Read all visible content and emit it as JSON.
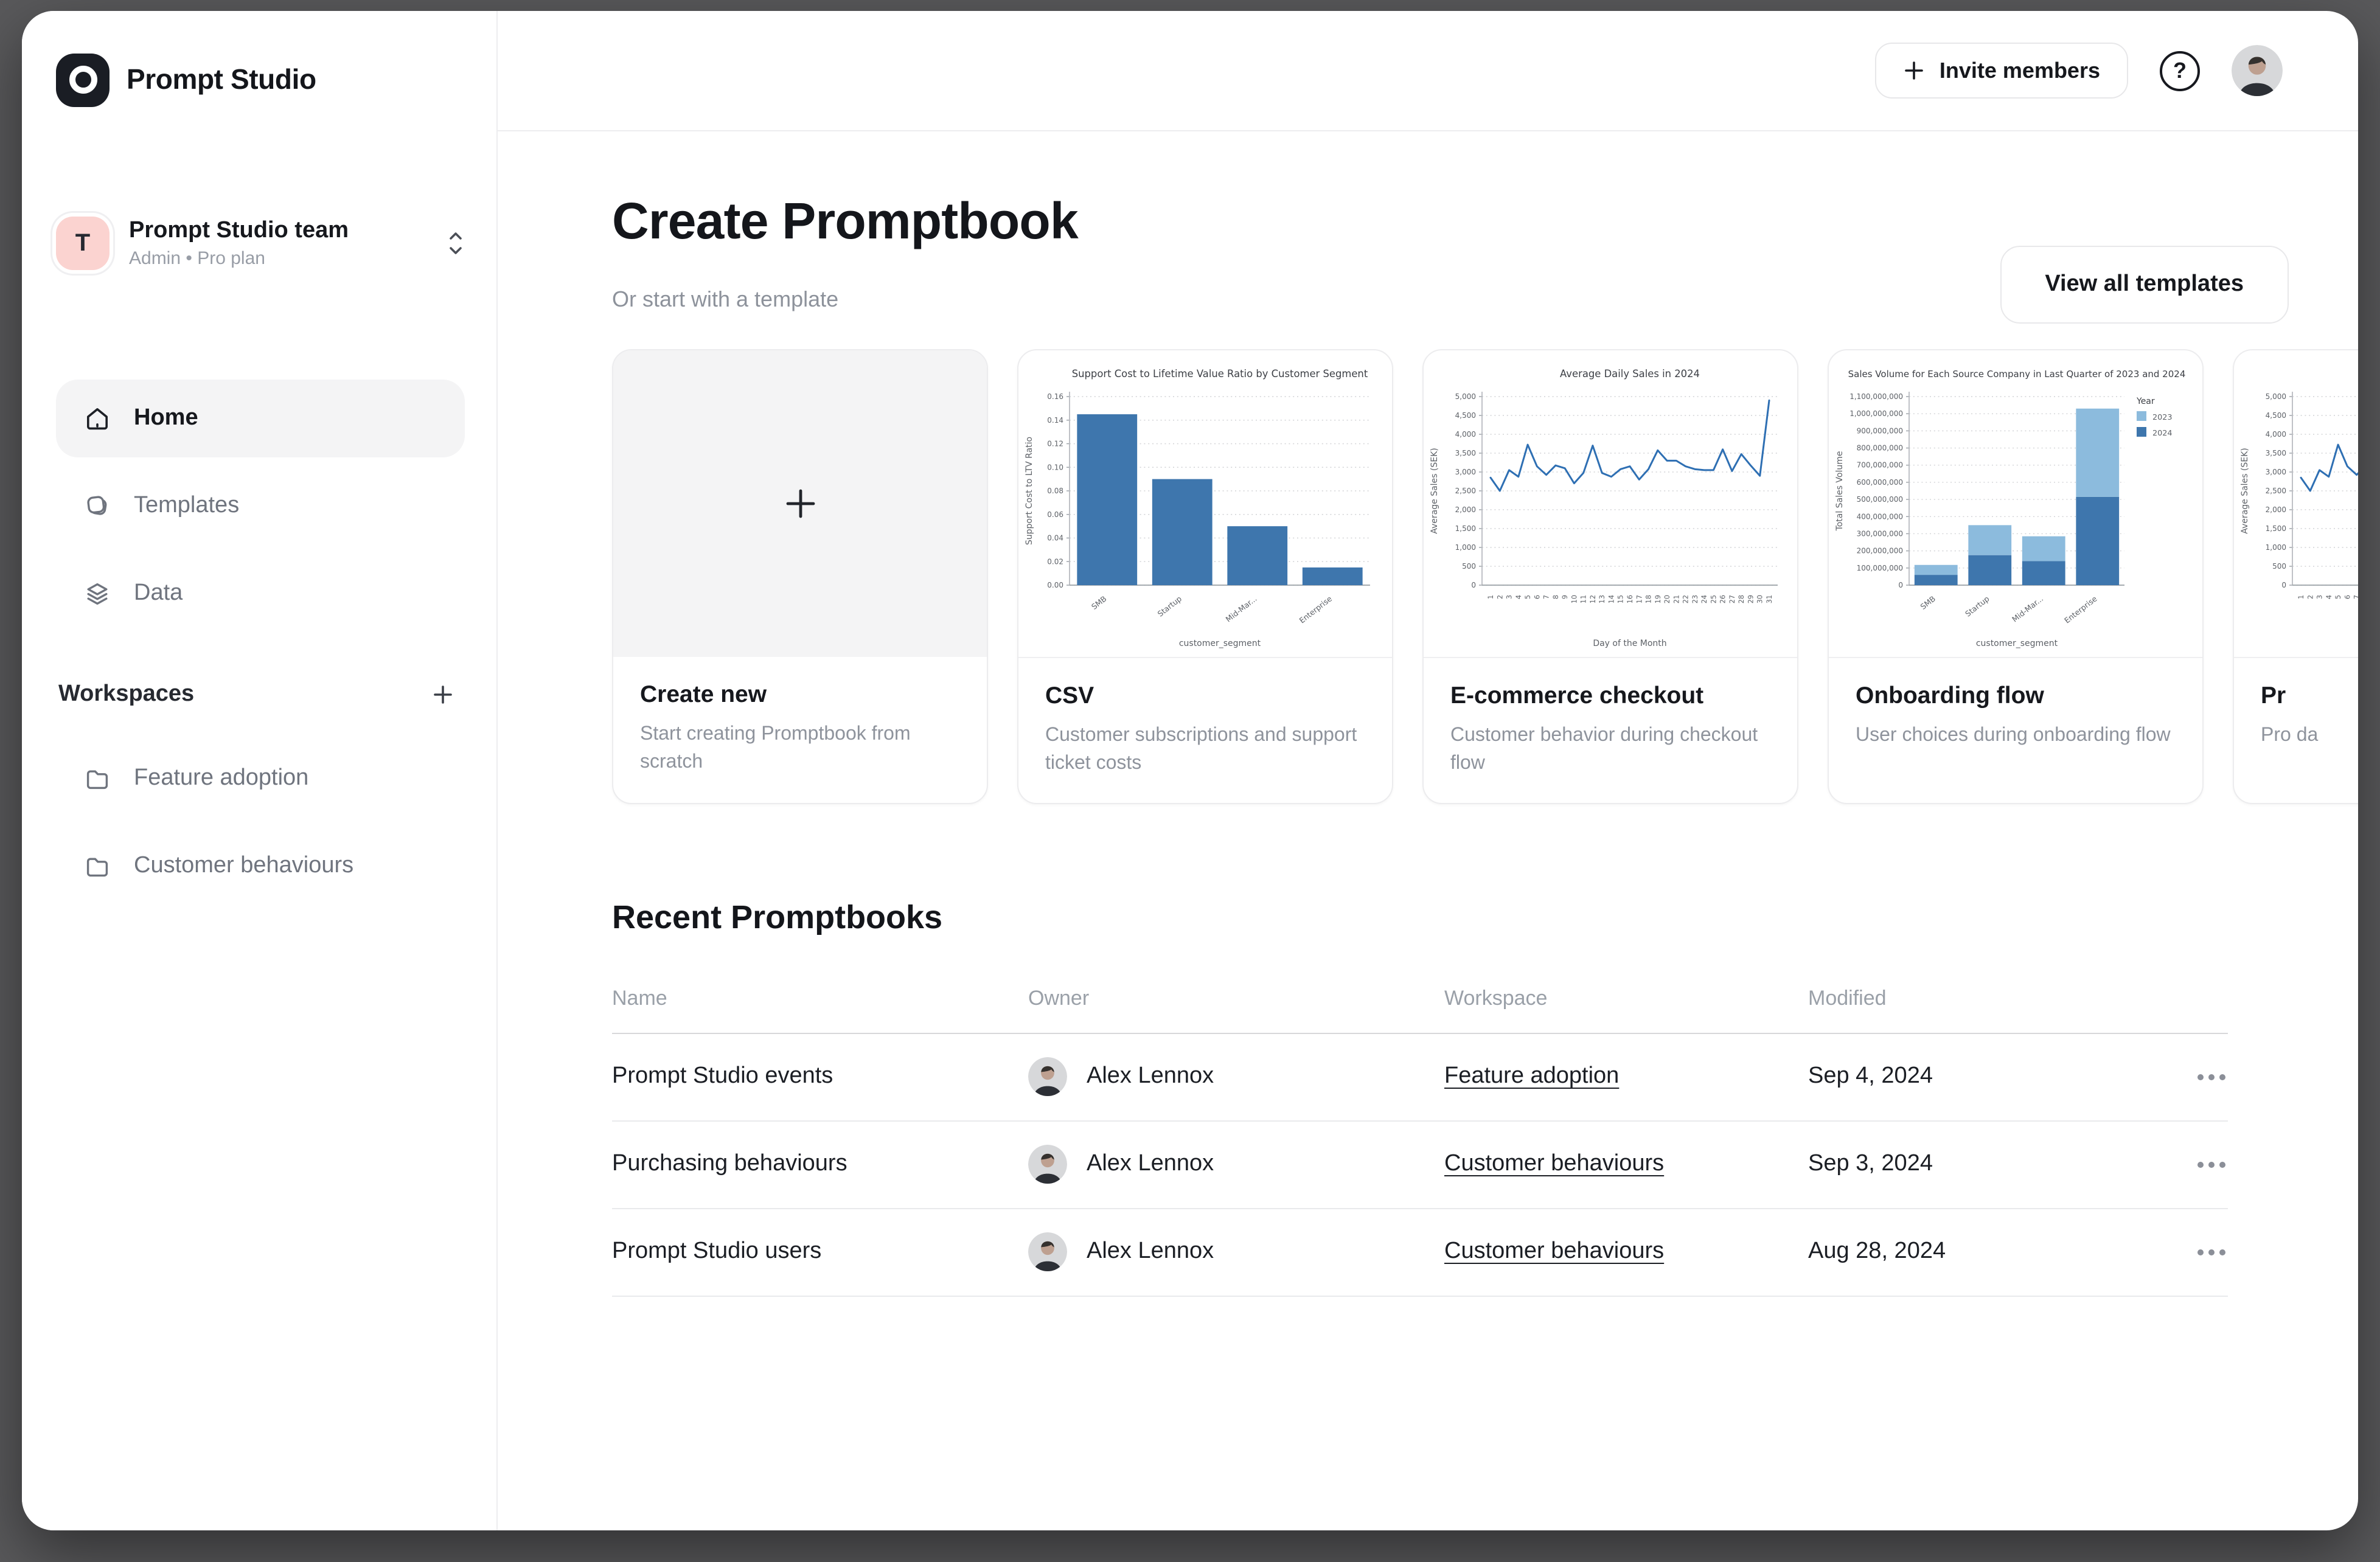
{
  "colors": {
    "frame_background": "#59595B",
    "team_avatar_bg": "#FBD3D0",
    "bar_blue": "#3E76AD",
    "light_blue": "#8CBBDD",
    "line_blue": "#2E6FB3",
    "active_pill": "#F4F4F5"
  },
  "sidebar": {
    "logo_text": "Prompt Studio",
    "team": {
      "avatar_letter": "T",
      "name": "Prompt Studio team",
      "meta": "Admin • Pro plan"
    },
    "nav": [
      {
        "label": "Home",
        "icon": "home-icon",
        "active": true
      },
      {
        "label": "Templates",
        "icon": "templates-icon",
        "active": false
      },
      {
        "label": "Data",
        "icon": "layers-icon",
        "active": false
      }
    ],
    "workspaces": {
      "label": "Workspaces",
      "items": [
        {
          "label": "Feature adoption",
          "icon": "folder-icon"
        },
        {
          "label": "Customer behaviours",
          "icon": "folder-icon"
        }
      ]
    }
  },
  "header": {
    "invite_label": "Invite members",
    "help_label": "?"
  },
  "create": {
    "title": "Create Promptbook",
    "subtitle": "Or start with a template",
    "view_all_label": "View all templates"
  },
  "templates": [
    {
      "title": "Create new",
      "description": "Start creating Promptbook from scratch"
    },
    {
      "title": "CSV",
      "description": "Customer subscriptions and support ticket costs"
    },
    {
      "title": "E-commerce checkout",
      "description": "Customer behavior during checkout flow"
    },
    {
      "title": "Onboarding flow",
      "description": "User choices during onboarding flow"
    },
    {
      "title": "Pr",
      "description": "Pro da"
    }
  ],
  "recent": {
    "title": "Recent Promptbooks",
    "columns": [
      "Name",
      "Owner",
      "Workspace",
      "Modified"
    ],
    "rows": [
      {
        "name": "Prompt Studio events",
        "owner": "Alex Lennox",
        "workspace": "Feature adoption",
        "modified": "Sep 4, 2024"
      },
      {
        "name": "Purchasing behaviours",
        "owner": "Alex Lennox",
        "workspace": "Customer behaviours",
        "modified": "Sep 3, 2024"
      },
      {
        "name": "Prompt Studio users",
        "owner": "Alex Lennox",
        "workspace": "Customer behaviours",
        "modified": "Aug 28, 2024"
      }
    ]
  },
  "chart_data": [
    {
      "type": "bar",
      "title": "Support Cost to Lifetime Value Ratio by Customer Segment",
      "xlabel": "customer_segment",
      "ylabel": "Support Cost to LTV Ratio",
      "categories": [
        "SMB",
        "Startup",
        "Mid-Mar...",
        "Enterprise"
      ],
      "values": [
        0.145,
        0.09,
        0.05,
        0.015
      ],
      "ylim": [
        0,
        0.16
      ],
      "ytick_step": 0.02,
      "ytick_decimals": 2,
      "bar_color": "#3E76AD",
      "grid": true,
      "legend": "none"
    },
    {
      "type": "line",
      "title": "Average Daily Sales in 2024",
      "xlabel": "Day of the Month",
      "ylabel": "Average Sales (SEK)",
      "x": [
        1,
        2,
        3,
        4,
        5,
        6,
        7,
        8,
        9,
        10,
        11,
        12,
        13,
        14,
        15,
        16,
        17,
        18,
        19,
        20,
        21,
        22,
        23,
        24,
        25,
        26,
        27,
        28,
        29,
        30,
        31
      ],
      "values": [
        2850,
        2500,
        3050,
        2875,
        3725,
        3150,
        2925,
        3175,
        3100,
        2700,
        2975,
        3700,
        2975,
        2875,
        3075,
        3150,
        2800,
        3075,
        3575,
        3300,
        3300,
        3150,
        3075,
        3050,
        3050,
        3600,
        3025,
        3475,
        3175,
        2900,
        4900
      ],
      "ylim": [
        0,
        5000
      ],
      "ytick_step": 500,
      "ytick_decimals": 0,
      "line_color": "#2E6FB3",
      "grid": true,
      "legend": "none"
    },
    {
      "type": "stacked_bar",
      "title": "Sales Volume for Each Source Company in Last Quarter of 2023 and 2024",
      "xlabel": "customer_segment",
      "ylabel": "Total Sales Volume",
      "categories": [
        "SMB",
        "Startup",
        "Mid-Mar...",
        "Enterprise"
      ],
      "series": [
        {
          "name": "2023",
          "color": "#8CBBDD",
          "values": [
            58000000,
            175000000,
            145000000,
            515000000
          ]
        },
        {
          "name": "2024",
          "color": "#3E76AD",
          "values": [
            60000000,
            175000000,
            140000000,
            515000000
          ]
        }
      ],
      "legend_title": "Year",
      "legend_position": "right",
      "ylim": [
        0,
        1100000000
      ],
      "ytick_step": 100000000,
      "ytick_decimals": 0,
      "grid": true
    }
  ]
}
